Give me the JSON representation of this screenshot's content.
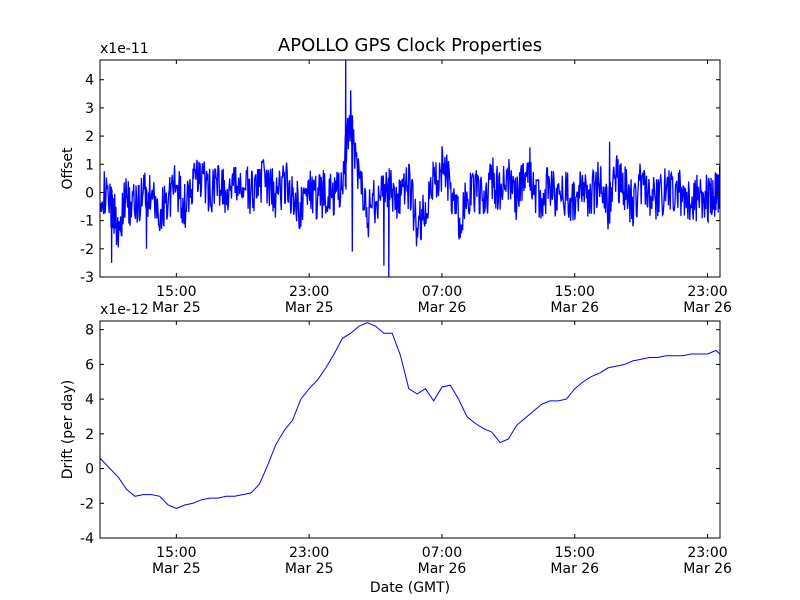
{
  "title": "APOLLO GPS Clock Properties",
  "chart_data": [
    {
      "type": "line",
      "ylabel": "Offset",
      "xlabel": "",
      "y_exponent_label": "x1e-11",
      "ylim": [
        -3,
        4.7
      ],
      "yticks": [
        -3,
        -2,
        -1,
        0,
        1,
        2,
        3,
        4
      ],
      "xlim_hours": [
        10.4,
        47.75
      ],
      "x_ticks": [
        {
          "hour": 15,
          "time": "15:00",
          "date": "Mar 25"
        },
        {
          "hour": 23,
          "time": "23:00",
          "date": "Mar 25"
        },
        {
          "hour": 31,
          "time": "07:00",
          "date": "Mar 26"
        },
        {
          "hour": 39,
          "time": "15:00",
          "date": "Mar 26"
        },
        {
          "hour": 47,
          "time": "23:00",
          "date": "Mar 26"
        }
      ],
      "series": [
        {
          "color": "#0000ff",
          "x_hours": [
            10.4,
            11.0,
            11.5,
            12.0,
            12.5,
            13.0,
            13.5,
            14.0,
            14.5,
            15.0,
            15.5,
            16.0,
            16.5,
            17.0,
            17.5,
            18.0,
            18.5,
            19.0,
            19.5,
            20.0,
            20.5,
            21.0,
            21.5,
            22.0,
            22.5,
            23.0,
            23.5,
            24.0,
            24.5,
            25.0,
            25.5,
            26.0,
            26.5,
            27.0,
            27.5,
            28.0,
            28.5,
            29.0,
            29.5,
            30.0,
            30.5,
            31.0,
            31.5,
            32.0,
            32.5,
            33.0,
            33.5,
            34.0,
            34.5,
            35.0,
            35.5,
            36.0,
            36.5,
            37.0,
            37.5,
            38.0,
            38.5,
            39.0,
            39.5,
            40.0,
            40.5,
            41.0,
            41.5,
            42.0,
            42.5,
            43.0,
            43.5,
            44.0,
            44.5,
            45.0,
            45.5,
            46.0,
            46.5,
            47.0,
            47.5,
            47.75
          ],
          "values": [
            0.2,
            -0.4,
            -1.2,
            -0.2,
            -0.6,
            0.1,
            -0.3,
            -0.8,
            -0.1,
            0.2,
            -0.5,
            0.3,
            0.6,
            0.0,
            0.4,
            -0.2,
            0.1,
            0.3,
            -0.1,
            0.5,
            0.2,
            -0.1,
            0.4,
            0.0,
            -0.6,
            0.2,
            -0.3,
            0.1,
            -0.2,
            0.3,
            2.8,
            0.5,
            -0.9,
            -0.2,
            0.2,
            0.0,
            -0.4,
            0.3,
            -1.2,
            -0.8,
            0.4,
            0.9,
            0.2,
            -1.0,
            -0.3,
            0.1,
            -0.4,
            0.5,
            0.0,
            0.4,
            -0.2,
            0.8,
            0.2,
            -0.3,
            0.3,
            -0.4,
            0.1,
            -0.5,
            0.2,
            -0.2,
            0.4,
            -0.6,
            0.6,
            0.2,
            -0.5,
            0.3,
            -0.1,
            -0.4,
            0.2,
            -0.3,
            0.1,
            -0.5,
            0.0,
            -0.2,
            -0.1,
            0.2
          ],
          "spikes": [
            {
              "hour": 11.1,
              "value": -2.5
            },
            {
              "hour": 13.2,
              "value": -2.0
            },
            {
              "hour": 25.2,
              "value": 4.7
            },
            {
              "hour": 25.6,
              "value": -2.1
            },
            {
              "hour": 27.5,
              "value": -2.6
            },
            {
              "hour": 27.8,
              "value": -3.0
            },
            {
              "hour": 36.3,
              "value": 1.6
            },
            {
              "hour": 41.1,
              "value": 1.8
            }
          ]
        }
      ]
    },
    {
      "type": "line",
      "ylabel": "Drift (per day)",
      "xlabel": "Date (GMT)",
      "y_exponent_label": "x1e-12",
      "ylim": [
        -4,
        8.5
      ],
      "yticks": [
        -4,
        -2,
        0,
        2,
        4,
        6,
        8
      ],
      "xlim_hours": [
        10.4,
        47.75
      ],
      "x_ticks": [
        {
          "hour": 15,
          "time": "15:00",
          "date": "Mar 25"
        },
        {
          "hour": 23,
          "time": "23:00",
          "date": "Mar 25"
        },
        {
          "hour": 31,
          "time": "07:00",
          "date": "Mar 26"
        },
        {
          "hour": 39,
          "time": "15:00",
          "date": "Mar 26"
        },
        {
          "hour": 47,
          "time": "23:00",
          "date": "Mar 26"
        }
      ],
      "series": [
        {
          "color": "#0000ff",
          "x_hours": [
            10.4,
            11.0,
            11.5,
            12.0,
            12.5,
            13.0,
            13.5,
            14.0,
            14.5,
            15.0,
            15.5,
            16.0,
            16.5,
            17.0,
            17.5,
            18.0,
            18.5,
            19.0,
            19.5,
            20.0,
            20.5,
            21.0,
            21.5,
            22.0,
            22.5,
            23.0,
            23.5,
            24.0,
            24.5,
            25.0,
            25.5,
            26.0,
            26.5,
            27.0,
            27.5,
            28.0,
            28.5,
            29.0,
            29.5,
            30.0,
            30.5,
            31.0,
            31.5,
            32.0,
            32.5,
            33.0,
            33.5,
            34.0,
            34.5,
            35.0,
            35.5,
            36.0,
            36.5,
            37.0,
            37.5,
            38.0,
            38.5,
            39.0,
            39.5,
            40.0,
            40.5,
            41.0,
            41.5,
            42.0,
            42.5,
            43.0,
            43.5,
            44.0,
            44.5,
            45.0,
            45.5,
            46.0,
            46.5,
            47.0,
            47.5,
            47.75
          ],
          "values": [
            0.6,
            0.0,
            -0.5,
            -1.2,
            -1.6,
            -1.5,
            -1.5,
            -1.6,
            -2.1,
            -2.3,
            -2.1,
            -2.0,
            -1.8,
            -1.7,
            -1.7,
            -1.6,
            -1.6,
            -1.5,
            -1.4,
            -0.9,
            0.2,
            1.4,
            2.2,
            2.8,
            4.0,
            4.6,
            5.1,
            5.8,
            6.6,
            7.5,
            7.8,
            8.2,
            8.4,
            8.2,
            7.8,
            7.8,
            6.5,
            4.6,
            4.3,
            4.6,
            3.9,
            4.7,
            4.8,
            4.0,
            3.0,
            2.6,
            2.3,
            2.1,
            1.5,
            1.7,
            2.5,
            2.9,
            3.3,
            3.7,
            3.9,
            3.9,
            4.0,
            4.6,
            5.0,
            5.3,
            5.5,
            5.8,
            5.9,
            6.0,
            6.2,
            6.3,
            6.4,
            6.4,
            6.5,
            6.5,
            6.5,
            6.6,
            6.6,
            6.6,
            6.8,
            6.6
          ]
        }
      ]
    }
  ]
}
